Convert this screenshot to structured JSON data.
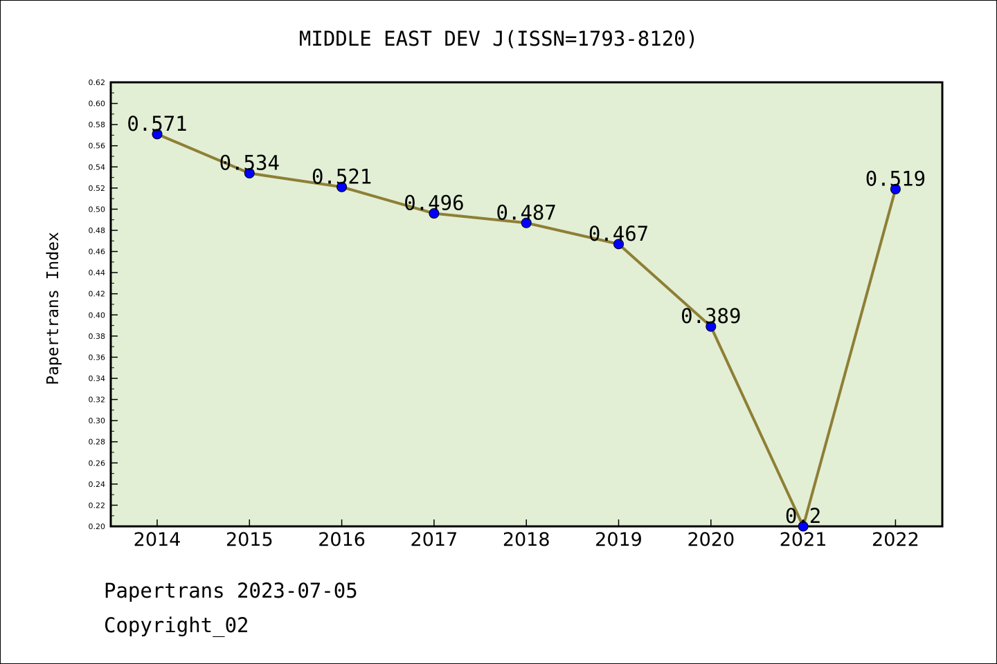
{
  "chart_data": {
    "type": "line",
    "title": "MIDDLE EAST DEV J(ISSN=1793-8120)",
    "xlabel": "",
    "ylabel": "Papertrans Index",
    "categories": [
      "2014",
      "2015",
      "2016",
      "2017",
      "2018",
      "2019",
      "2020",
      "2021",
      "2022"
    ],
    "values": [
      0.571,
      0.534,
      0.521,
      0.496,
      0.487,
      0.467,
      0.389,
      0.2,
      0.519
    ],
    "data_labels": [
      "0.571",
      "0.534",
      "0.521",
      "0.496",
      "0.487",
      "0.467",
      "0.389",
      "0.2",
      "0.519"
    ],
    "ylim": [
      0.2,
      0.62
    ],
    "yticks": [
      "0.20",
      "0.22",
      "0.24",
      "0.26",
      "0.28",
      "0.30",
      "0.32",
      "0.34",
      "0.36",
      "0.38",
      "0.40",
      "0.42",
      "0.44",
      "0.46",
      "0.48",
      "0.50",
      "0.52",
      "0.54",
      "0.56",
      "0.58",
      "0.60",
      "0.62"
    ],
    "grid": false,
    "colors": {
      "plot_background": "#e2efd5",
      "line": "#8e7f36",
      "marker": "#0000ff"
    }
  },
  "footer": {
    "line1": "Papertrans 2023-07-05",
    "line2": "Copyright_02"
  }
}
